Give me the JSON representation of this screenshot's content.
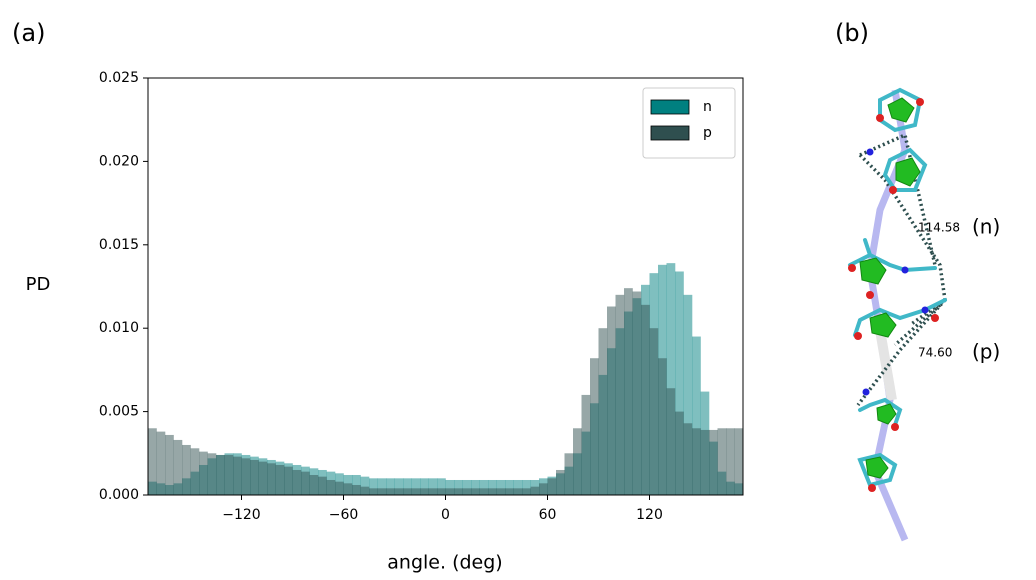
{
  "chart_data": {
    "type": "histogram",
    "title": "(a)",
    "xlabel": "angle. (deg)",
    "ylabel": "PD",
    "bins": [
      -175,
      -170,
      -165,
      -160,
      -155,
      -150,
      -145,
      -140,
      -135,
      -130,
      -125,
      -120,
      -115,
      -110,
      -105,
      -100,
      -95,
      -90,
      -85,
      -80,
      -75,
      -70,
      -65,
      -60,
      -55,
      -50,
      -45,
      -40,
      -35,
      -30,
      -25,
      -20,
      -15,
      -10,
      -5,
      0,
      5,
      10,
      15,
      20,
      25,
      30,
      35,
      40,
      45,
      50,
      55,
      60,
      65,
      70,
      75,
      80,
      85,
      90,
      95,
      100,
      105,
      110,
      115,
      120,
      125,
      130,
      135,
      140,
      145,
      150,
      155,
      160,
      165,
      170,
      175
    ],
    "series": [
      {
        "name": "n",
        "color": "#008080",
        "opacity": 0.5,
        "values": [
          0.0008,
          0.0007,
          0.0006,
          0.0007,
          0.001,
          0.0014,
          0.0018,
          0.0022,
          0.0024,
          0.0025,
          0.0025,
          0.0024,
          0.0023,
          0.0022,
          0.0021,
          0.002,
          0.0019,
          0.0018,
          0.0017,
          0.0016,
          0.0015,
          0.0014,
          0.0013,
          0.0012,
          0.0012,
          0.0011,
          0.001,
          0.001,
          0.001,
          0.001,
          0.001,
          0.001,
          0.001,
          0.001,
          0.001,
          0.0009,
          0.0009,
          0.0009,
          0.0009,
          0.0009,
          0.0009,
          0.0009,
          0.0009,
          0.0009,
          0.0009,
          0.0009,
          0.001,
          0.0011,
          0.0013,
          0.0017,
          0.0025,
          0.0038,
          0.0055,
          0.0072,
          0.0088,
          0.01,
          0.011,
          0.0118,
          0.0126,
          0.0133,
          0.0138,
          0.0139,
          0.0134,
          0.012,
          0.0095,
          0.0062,
          0.0032,
          0.0014,
          0.0008,
          0.0007
        ]
      },
      {
        "name": "p",
        "color": "#2f4f4f",
        "opacity": 0.5,
        "values": [
          0.004,
          0.0038,
          0.0036,
          0.0033,
          0.003,
          0.0028,
          0.0026,
          0.0025,
          0.0024,
          0.0024,
          0.0023,
          0.0022,
          0.0021,
          0.002,
          0.0019,
          0.0018,
          0.0017,
          0.0015,
          0.0014,
          0.0012,
          0.0011,
          0.0009,
          0.0008,
          0.0007,
          0.0006,
          0.0005,
          0.0004,
          0.0004,
          0.0004,
          0.0004,
          0.0004,
          0.0004,
          0.0004,
          0.0004,
          0.0004,
          0.0004,
          0.0004,
          0.0004,
          0.0004,
          0.0004,
          0.0004,
          0.0004,
          0.0004,
          0.0004,
          0.0004,
          0.0005,
          0.0007,
          0.001,
          0.0015,
          0.0025,
          0.004,
          0.006,
          0.0082,
          0.01,
          0.0113,
          0.012,
          0.0124,
          0.0122,
          0.0114,
          0.01,
          0.0082,
          0.0064,
          0.005,
          0.0043,
          0.004,
          0.0039,
          0.0039,
          0.004,
          0.004,
          0.004
        ]
      }
    ],
    "xlim": [
      -175,
      175
    ],
    "ylim": [
      0,
      0.025
    ],
    "xticks": [
      {
        "value": -120,
        "label": "−120"
      },
      {
        "value": -60,
        "label": "−60"
      },
      0,
      60,
      120
    ],
    "yticks": [
      {
        "value": 0,
        "label": "0.000"
      },
      {
        "value": 0.005,
        "label": "0.005"
      },
      {
        "value": 0.01,
        "label": "0.010"
      },
      {
        "value": 0.015,
        "label": "0.015"
      },
      {
        "value": 0.02,
        "label": "0.020"
      },
      {
        "value": 0.025,
        "label": "0.025"
      }
    ],
    "legend": "upper right"
  },
  "panel_b": {
    "title": "(b)",
    "distances": [
      {
        "value": "114.58",
        "tag": "(n)"
      },
      {
        "value": "74.60",
        "tag": "(p)"
      }
    ]
  }
}
